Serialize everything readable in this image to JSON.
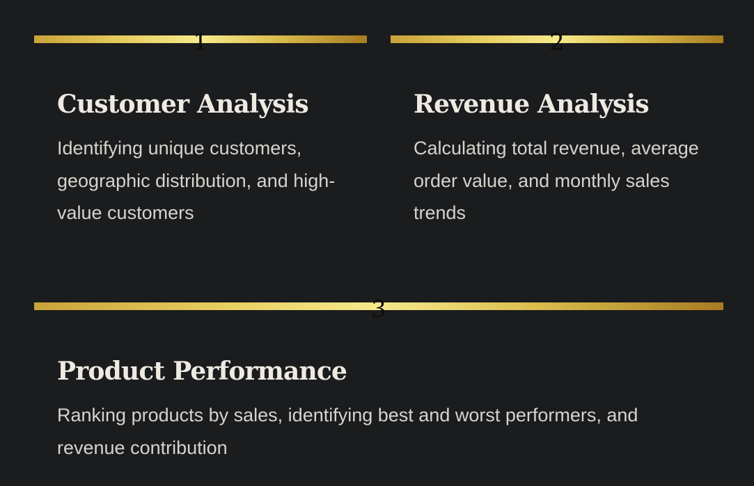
{
  "cards": [
    {
      "number": "1",
      "title": "Customer Analysis",
      "description": "Identifying unique customers, geographic distribution, and high-value customers"
    },
    {
      "number": "2",
      "title": "Revenue Analysis",
      "description": "Calculating total revenue, average order value, and monthly sales trends"
    },
    {
      "number": "3",
      "title": "Product Performance",
      "description": "Ranking products by sales, identifying best and worst performers, and revenue contribution"
    }
  ],
  "colors": {
    "background": "#1b1c1e",
    "gold_gradient": [
      "#c9a33a",
      "#f6ea8c",
      "#a87c22"
    ],
    "title": "#eeeae2",
    "text": "#d6d3cc"
  }
}
